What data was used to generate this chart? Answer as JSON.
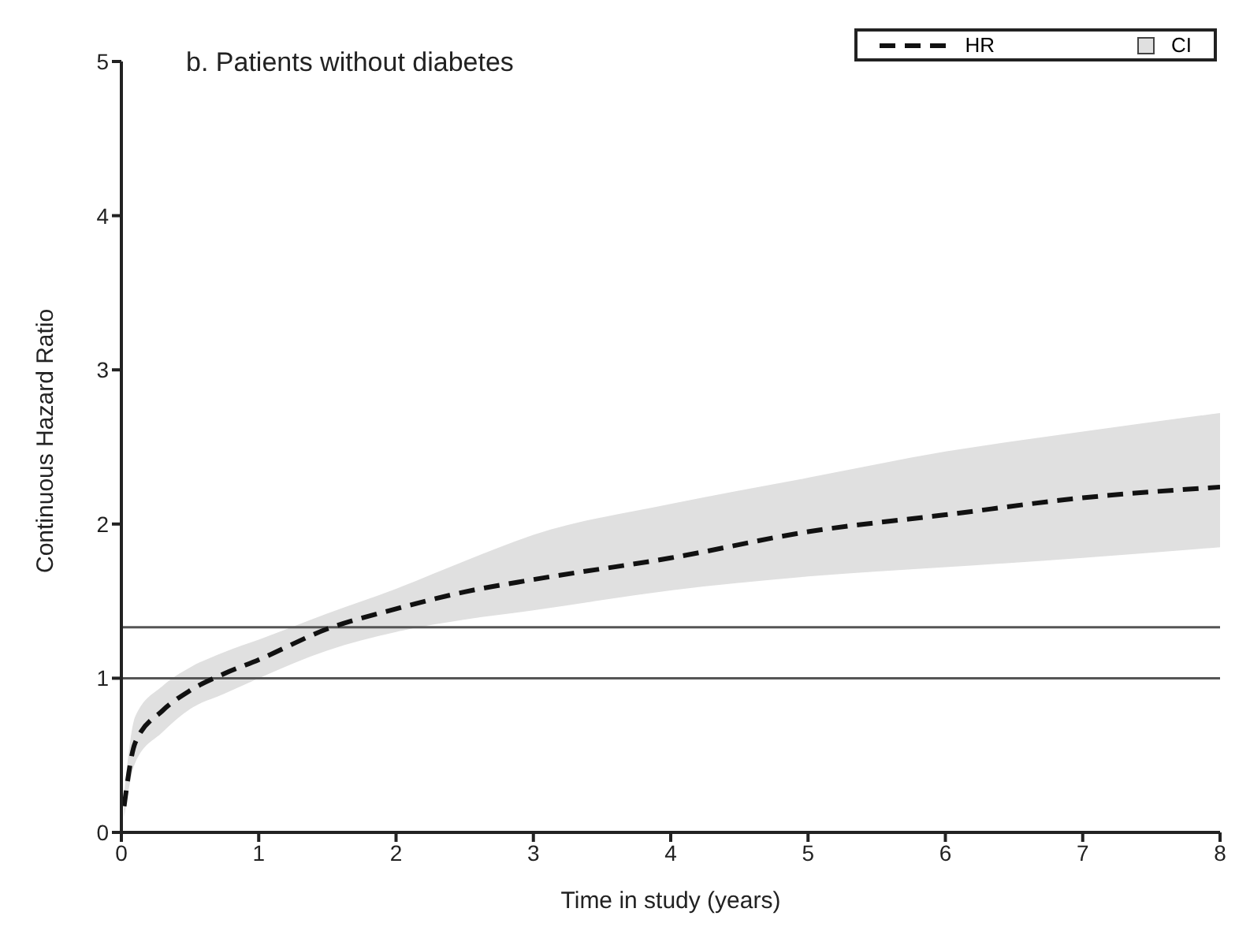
{
  "chart_data": {
    "type": "line",
    "title": "b. Patients without diabetes",
    "xlabel": "Time in study (years)",
    "ylabel": "Continuous Hazard Ratio",
    "x": [
      0.02,
      0.1,
      0.3,
      0.5,
      0.75,
      1,
      1.5,
      2,
      2.5,
      3,
      4,
      5,
      6,
      7,
      8
    ],
    "series": [
      {
        "name": "HR",
        "color": "#111111",
        "line_style": "dashed",
        "values": [
          0.17,
          0.58,
          0.79,
          0.92,
          1.03,
          1.12,
          1.32,
          1.45,
          1.56,
          1.64,
          1.78,
          1.95,
          2.06,
          2.17,
          2.24
        ],
        "lower": [
          0.1,
          0.45,
          0.65,
          0.8,
          0.9,
          1.0,
          1.18,
          1.3,
          1.38,
          1.44,
          1.57,
          1.66,
          1.72,
          1.78,
          1.85
        ],
        "upper": [
          0.25,
          0.75,
          0.95,
          1.07,
          1.17,
          1.25,
          1.42,
          1.58,
          1.76,
          1.93,
          2.13,
          2.3,
          2.47,
          2.6,
          2.72
        ]
      }
    ],
    "annotations": [
      "CI"
    ],
    "xlim": [
      0,
      8
    ],
    "xticks": [
      0,
      1,
      2,
      3,
      4,
      5,
      6,
      7,
      8
    ],
    "ylim": [
      0,
      5
    ],
    "yticks": [
      0,
      1,
      2,
      3,
      4,
      5
    ],
    "ref_lines": [
      {
        "axis": "y",
        "value": 1,
        "color": "#555555"
      },
      {
        "axis": "y",
        "value": 1.33,
        "color": "#555555"
      }
    ],
    "grid": false,
    "legend": "top right"
  }
}
